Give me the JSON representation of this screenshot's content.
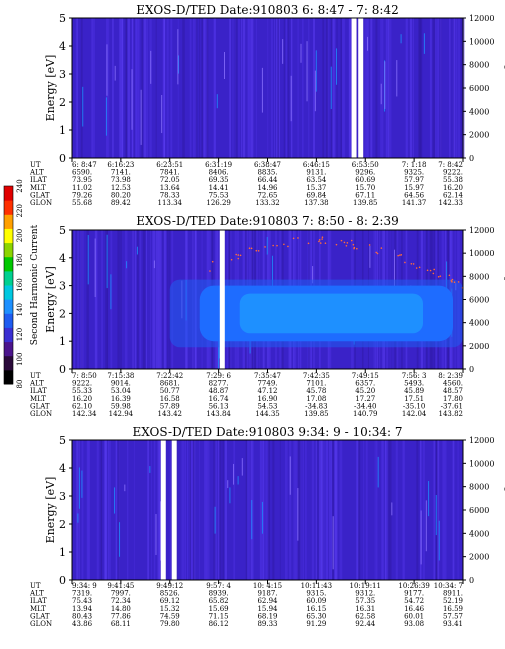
{
  "colorbar": {
    "title": "Second Harmonic Current",
    "ticks": [
      "80",
      "100",
      "120",
      "140",
      "160",
      "180",
      "200",
      "220",
      "240"
    ],
    "colors": [
      "#000000",
      "#2a0a3a",
      "#4b148c",
      "#3a2fd2",
      "#1f5cf0",
      "#1e90ff",
      "#00c8e0",
      "#00d090",
      "#00c800",
      "#8cd400",
      "#ffff00",
      "#ffa000",
      "#ff3000",
      "#e00000"
    ]
  },
  "chart_data": [
    {
      "type": "heatmap",
      "title": "EXOS-D/TED   Date:910803   6: 8:47 - 7: 8:42",
      "ylabel": "Energy [eV]",
      "y2label": "Temperature [K]",
      "ylim": [
        0,
        5
      ],
      "y_ticks": [
        "0",
        "1",
        "2",
        "3",
        "4",
        "5"
      ],
      "y2lim": [
        0,
        12000
      ],
      "y2_ticks": [
        "0",
        "2000",
        "4000",
        "6000",
        "8000",
        "10000",
        "12000"
      ],
      "aux_labels": [
        "UT",
        "ALT",
        "ILAT",
        "MLT",
        "GLAT",
        "GLON"
      ],
      "columns": [
        [
          "6: 8:47",
          "6590.",
          "73.95",
          "11.02",
          "79.26",
          "55.68"
        ],
        [
          "6:16:23",
          "7141.",
          "73.98",
          "12.53",
          "80.20",
          "89.42"
        ],
        [
          "6:23:51",
          "7841.",
          "72.05",
          "13.64",
          "78.33",
          "113.34"
        ],
        [
          "6:31:19",
          "8406.",
          "69.35",
          "14.41",
          "75.53",
          "126.29"
        ],
        [
          "6:38:47",
          "8835.",
          "66.44",
          "14.96",
          "72.65",
          "133.32"
        ],
        [
          "6:46:15",
          "9131.",
          "63.54",
          "15.37",
          "69.84",
          "137.38"
        ],
        [
          "6:53:50",
          "9296.",
          "60.69",
          "15.70",
          "67.11",
          "139.85"
        ],
        [
          "7: 1:18",
          "9325.",
          "57.97",
          "15.97",
          "64.56",
          "141.37"
        ],
        [
          "7: 8:42",
          "9222.",
          "55.38",
          "16.20",
          "62.14",
          "142.33"
        ]
      ],
      "gaps": [
        0.715,
        0.732
      ],
      "band": null
    },
    {
      "type": "heatmap",
      "title": "EXOS-D/TED   Date:910803   7: 8:50 - 8: 2:39",
      "ylabel": "Energy [eV]",
      "y2label": "Temperature [K]",
      "ylim": [
        0,
        5
      ],
      "y_ticks": [
        "0",
        "1",
        "2",
        "3",
        "4",
        "5"
      ],
      "y2lim": [
        0,
        12000
      ],
      "y2_ticks": [
        "0",
        "2000",
        "4000",
        "6000",
        "8000",
        "10000",
        "12000"
      ],
      "aux_labels": [
        "UT",
        "ALT",
        "ILAT",
        "MLT",
        "GLAT",
        "GLON"
      ],
      "columns": [
        [
          "7: 8:50",
          "9222.",
          "55.33",
          "16.20",
          "62.10",
          "142.34"
        ],
        [
          "7:15:38",
          "9014.",
          "53.04",
          "16.39",
          "59.98",
          "142.94"
        ],
        [
          "7:22:42",
          "8681.",
          "50.77",
          "16.58",
          "57.89",
          "143.42"
        ],
        [
          "7:29: 6",
          "8277.",
          "48.87",
          "16.74",
          "56.13",
          "143.84"
        ],
        [
          "7:35:47",
          "7749.",
          "47.12",
          "16.90",
          "54.53",
          "144.35"
        ],
        [
          "7:42:35",
          "7101.",
          "45.78",
          "17.08",
          "-34.83",
          "139.85"
        ],
        [
          "7:49:15",
          "6357.",
          "45.20",
          "17.27",
          "-34.40",
          "140.79"
        ],
        [
          "7:56: 3",
          "5493.",
          "45.89",
          "17.51",
          "-35.10",
          "142.04"
        ],
        [
          "8: 2:39",
          "4560.",
          "48.57",
          "17.80",
          "-37.61",
          "143.82"
        ]
      ],
      "gaps": [
        0.378
      ],
      "band": {
        "from": 0.25,
        "to": 1.0,
        "ymin": 1.0,
        "ymax": 3.0
      }
    },
    {
      "type": "heatmap",
      "title": "EXOS-D/TED   Date:910803   9:34: 9 - 10:34: 7",
      "ylabel": "Energy [eV]",
      "y2label": "Temperature [K]",
      "ylim": [
        0,
        5
      ],
      "y_ticks": [
        "0",
        "1",
        "2",
        "3",
        "4",
        "5"
      ],
      "y2lim": [
        0,
        12000
      ],
      "y2_ticks": [
        "0",
        "2000",
        "4000",
        "6000",
        "8000",
        "10000",
        "12000"
      ],
      "aux_labels": [
        "UT",
        "ALT",
        "ILAT",
        "MLT",
        "GLAT",
        "GLON"
      ],
      "columns": [
        [
          "9:34: 9",
          "7319.",
          "75.43",
          "13.94",
          "80.43",
          "43.86"
        ],
        [
          "9:41:45",
          "7997.",
          "72.34",
          "14.80",
          "77.86",
          "68.11"
        ],
        [
          "9:49:12",
          "8526.",
          "69.12",
          "15.32",
          "74.59",
          "79.80"
        ],
        [
          "9:57: 4",
          "8939.",
          "65.82",
          "15.69",
          "71.15",
          "86.12"
        ],
        [
          "10: 4:15",
          "9187.",
          "62.94",
          "15.94",
          "68.19",
          "89.33"
        ],
        [
          "10:11:43",
          "9315.",
          "60.09",
          "16.15",
          "65.30",
          "91.29"
        ],
        [
          "10:19:11",
          "9312.",
          "57.35",
          "16.31",
          "62.58",
          "92.44"
        ],
        [
          "10:26:39",
          "9177.",
          "54.72",
          "16.46",
          "60.01",
          "93.08"
        ],
        [
          "10:34: 7",
          "8911.",
          "52.19",
          "16.59",
          "57.57",
          "93.41"
        ]
      ],
      "gaps": [
        0.227,
        0.255
      ],
      "band": null
    }
  ]
}
